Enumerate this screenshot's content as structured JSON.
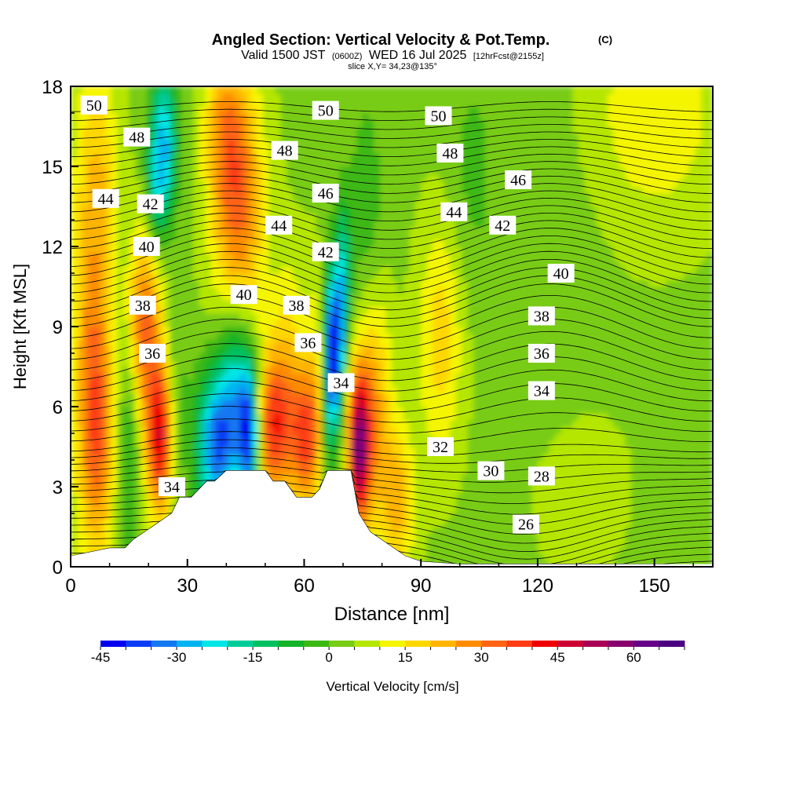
{
  "chart_data": {
    "type": "heatmap",
    "title": "Angled Section: Vertical Velocity & Pot.Temp.",
    "title_mark": "(C)",
    "subtitle_main": "Valid 1500 JST",
    "subtitle_utc": "(0600Z)",
    "subtitle_date": "WED 16 Jul 2025",
    "subtitle_fcst": "[12hrFcst@2155z]",
    "subtitle_slice": "slice X,Y= 34,23@135°",
    "xlabel": "Distance [nm]",
    "ylabel": "Height [Kft MSL]",
    "xlim": [
      0,
      165
    ],
    "ylim": [
      0,
      18
    ],
    "xticks": [
      "0",
      "30",
      "60",
      "90",
      "120",
      "150"
    ],
    "yticks": [
      "0",
      "3",
      "6",
      "9",
      "12",
      "15",
      "18"
    ],
    "xtick_values": [
      0,
      30,
      60,
      90,
      120,
      150
    ],
    "ytick_values": [
      0,
      3,
      6,
      9,
      12,
      15,
      18
    ],
    "colorbar": {
      "label": "Vertical Velocity [cm/s]",
      "range": [
        -45,
        70
      ],
      "step": 5,
      "tick_values": [
        -45,
        -30,
        -15,
        0,
        15,
        30,
        45,
        60
      ],
      "tick_labels": [
        "-45",
        "-30",
        "-15",
        "0",
        "15",
        "30",
        "45",
        "60"
      ],
      "colors": [
        "#0000ee",
        "#0a3cf5",
        "#1478f0",
        "#00b4f0",
        "#00e6e6",
        "#00cc99",
        "#00c060",
        "#14b428",
        "#3cb814",
        "#78cc14",
        "#b4e600",
        "#f5f500",
        "#ffd700",
        "#ffb400",
        "#ff8c00",
        "#ff6414",
        "#ff3c14",
        "#ee0000",
        "#cc0033",
        "#aa0055",
        "#88006e",
        "#660088",
        "#4b0082"
      ]
    },
    "terrain": [
      {
        "x": 0,
        "h": 0.4
      },
      {
        "x": 10,
        "h": 0.7
      },
      {
        "x": 14,
        "h": 0.7
      },
      {
        "x": 16,
        "h": 1.0
      },
      {
        "x": 19,
        "h": 1.3
      },
      {
        "x": 22,
        "h": 1.6
      },
      {
        "x": 26,
        "h": 2.0
      },
      {
        "x": 28,
        "h": 2.6
      },
      {
        "x": 31,
        "h": 2.6
      },
      {
        "x": 33,
        "h": 2.9
      },
      {
        "x": 35,
        "h": 3.2
      },
      {
        "x": 37,
        "h": 3.2
      },
      {
        "x": 40,
        "h": 3.6
      },
      {
        "x": 48,
        "h": 3.6
      },
      {
        "x": 50,
        "h": 3.6
      },
      {
        "x": 52,
        "h": 3.2
      },
      {
        "x": 55,
        "h": 3.2
      },
      {
        "x": 58,
        "h": 2.6
      },
      {
        "x": 60,
        "h": 2.6
      },
      {
        "x": 62,
        "h": 2.6
      },
      {
        "x": 64,
        "h": 2.9
      },
      {
        "x": 66,
        "h": 3.6
      },
      {
        "x": 72,
        "h": 3.6
      },
      {
        "x": 74,
        "h": 2.0
      },
      {
        "x": 77,
        "h": 1.3
      },
      {
        "x": 80,
        "h": 1.0
      },
      {
        "x": 83,
        "h": 0.7
      },
      {
        "x": 86,
        "h": 0.4
      },
      {
        "x": 90,
        "h": 0.2
      },
      {
        "x": 100,
        "h": 0.1
      },
      {
        "x": 165,
        "h": 0.1
      }
    ],
    "updrafts": [
      {
        "x": 5,
        "z": 10.0,
        "sx": 3.5,
        "sz": 6.0,
        "w": 18
      },
      {
        "x": 7,
        "z": 5.0,
        "sx": 3.0,
        "sz": 3.0,
        "w": 22
      },
      {
        "x": 15,
        "z": 4.5,
        "sx": 2.0,
        "sz": 3.0,
        "w": -12
      },
      {
        "x": 19,
        "z": 9.0,
        "sx": 3.0,
        "sz": 2.5,
        "w": 28
      },
      {
        "x": 23,
        "z": 4.8,
        "sx": 2.5,
        "sz": 2.0,
        "w": 40
      },
      {
        "x": 27,
        "z": 6.0,
        "sx": 2.0,
        "sz": 2.5,
        "w": -8
      },
      {
        "x": 24,
        "z": 16.0,
        "sx": 2.5,
        "sz": 2.0,
        "w": -28
      },
      {
        "x": 22,
        "z": 14.0,
        "sx": 2.0,
        "sz": 1.5,
        "w": -15
      },
      {
        "x": 9,
        "z": 14.5,
        "sx": 3.0,
        "sz": 3.0,
        "w": 8
      },
      {
        "x": 37,
        "z": 4.5,
        "sx": 3.5,
        "sz": 2.0,
        "w": -35
      },
      {
        "x": 42,
        "z": 6.5,
        "sx": 3.0,
        "sz": 2.5,
        "w": -25
      },
      {
        "x": 46,
        "z": 5.0,
        "sx": 2.0,
        "sz": 2.0,
        "w": -42
      },
      {
        "x": 43,
        "z": 13.5,
        "sx": 4.5,
        "sz": 3.5,
        "w": 28
      },
      {
        "x": 39,
        "z": 16.5,
        "sx": 3.5,
        "sz": 2.0,
        "w": 14
      },
      {
        "x": 52,
        "z": 5.2,
        "sx": 3.5,
        "sz": 2.0,
        "w": 35
      },
      {
        "x": 60,
        "z": 4.8,
        "sx": 2.5,
        "sz": 1.8,
        "w": 28
      },
      {
        "x": 56,
        "z": 8.5,
        "sx": 3.0,
        "sz": 2.5,
        "w": 10
      },
      {
        "x": 63,
        "z": 6.5,
        "sx": 2.0,
        "sz": 3.0,
        "w": 12
      },
      {
        "x": 66,
        "z": 7.0,
        "sx": 1.2,
        "sz": 3.0,
        "w": -18
      },
      {
        "x": 68,
        "z": 8.0,
        "sx": 1.5,
        "sz": 2.0,
        "w": -44
      },
      {
        "x": 70,
        "z": 11.0,
        "sx": 1.5,
        "sz": 2.0,
        "w": -22
      },
      {
        "x": 74,
        "z": 4.5,
        "sx": 2.0,
        "sz": 2.0,
        "w": 52
      },
      {
        "x": 78,
        "z": 6.0,
        "sx": 3.0,
        "sz": 3.0,
        "w": 20
      },
      {
        "x": 76,
        "z": 13.5,
        "sx": 3.0,
        "sz": 3.0,
        "w": -8
      },
      {
        "x": 84,
        "z": 2.5,
        "sx": 3.0,
        "sz": 2.0,
        "w": 18
      },
      {
        "x": 95,
        "z": 8.5,
        "sx": 4.0,
        "sz": 3.0,
        "w": 14
      },
      {
        "x": 103,
        "z": 15.0,
        "sx": 4.0,
        "sz": 3.0,
        "w": -5
      },
      {
        "x": 120,
        "z": 12.0,
        "sx": 10.0,
        "sz": 5.0,
        "w": -3
      },
      {
        "x": 130,
        "z": 3.0,
        "sx": 10.0,
        "sz": 2.5,
        "w": 3
      },
      {
        "x": 150,
        "z": 17.0,
        "sx": 12.0,
        "sz": 3.0,
        "w": 10
      }
    ],
    "isentropes": {
      "theta_range": [
        24,
        50
      ],
      "contour_labels": [
        {
          "text": "50",
          "x": 6,
          "z": 17.3
        },
        {
          "text": "48",
          "x": 17,
          "z": 16.1
        },
        {
          "text": "44",
          "x": 9,
          "z": 13.8
        },
        {
          "text": "42",
          "x": 20.5,
          "z": 13.6
        },
        {
          "text": "40",
          "x": 19.5,
          "z": 12.0
        },
        {
          "text": "38",
          "x": 18.5,
          "z": 9.8
        },
        {
          "text": "36",
          "x": 21,
          "z": 8.0
        },
        {
          "text": "34",
          "x": 26,
          "z": 3.0
        },
        {
          "text": "40",
          "x": 44.5,
          "z": 10.2
        },
        {
          "text": "44",
          "x": 53.5,
          "z": 12.8
        },
        {
          "text": "48",
          "x": 55,
          "z": 15.6
        },
        {
          "text": "50",
          "x": 65.5,
          "z": 17.1
        },
        {
          "text": "46",
          "x": 65.5,
          "z": 14.0
        },
        {
          "text": "42",
          "x": 65.5,
          "z": 11.8
        },
        {
          "text": "38",
          "x": 58,
          "z": 9.8
        },
        {
          "text": "36",
          "x": 61,
          "z": 8.4
        },
        {
          "text": "34",
          "x": 69.5,
          "z": 6.9
        },
        {
          "text": "50",
          "x": 94.5,
          "z": 16.9
        },
        {
          "text": "48",
          "x": 97.5,
          "z": 15.5
        },
        {
          "text": "46",
          "x": 115,
          "z": 14.5
        },
        {
          "text": "44",
          "x": 98.5,
          "z": 13.3
        },
        {
          "text": "42",
          "x": 111,
          "z": 12.8
        },
        {
          "text": "40",
          "x": 126,
          "z": 11.0
        },
        {
          "text": "38",
          "x": 121,
          "z": 9.4
        },
        {
          "text": "36",
          "x": 121,
          "z": 8.0
        },
        {
          "text": "34",
          "x": 121,
          "z": 6.6
        },
        {
          "text": "32",
          "x": 95,
          "z": 4.5
        },
        {
          "text": "30",
          "x": 108,
          "z": 3.6
        },
        {
          "text": "28",
          "x": 121,
          "z": 3.4
        },
        {
          "text": "26",
          "x": 117,
          "z": 1.6
        }
      ]
    }
  }
}
